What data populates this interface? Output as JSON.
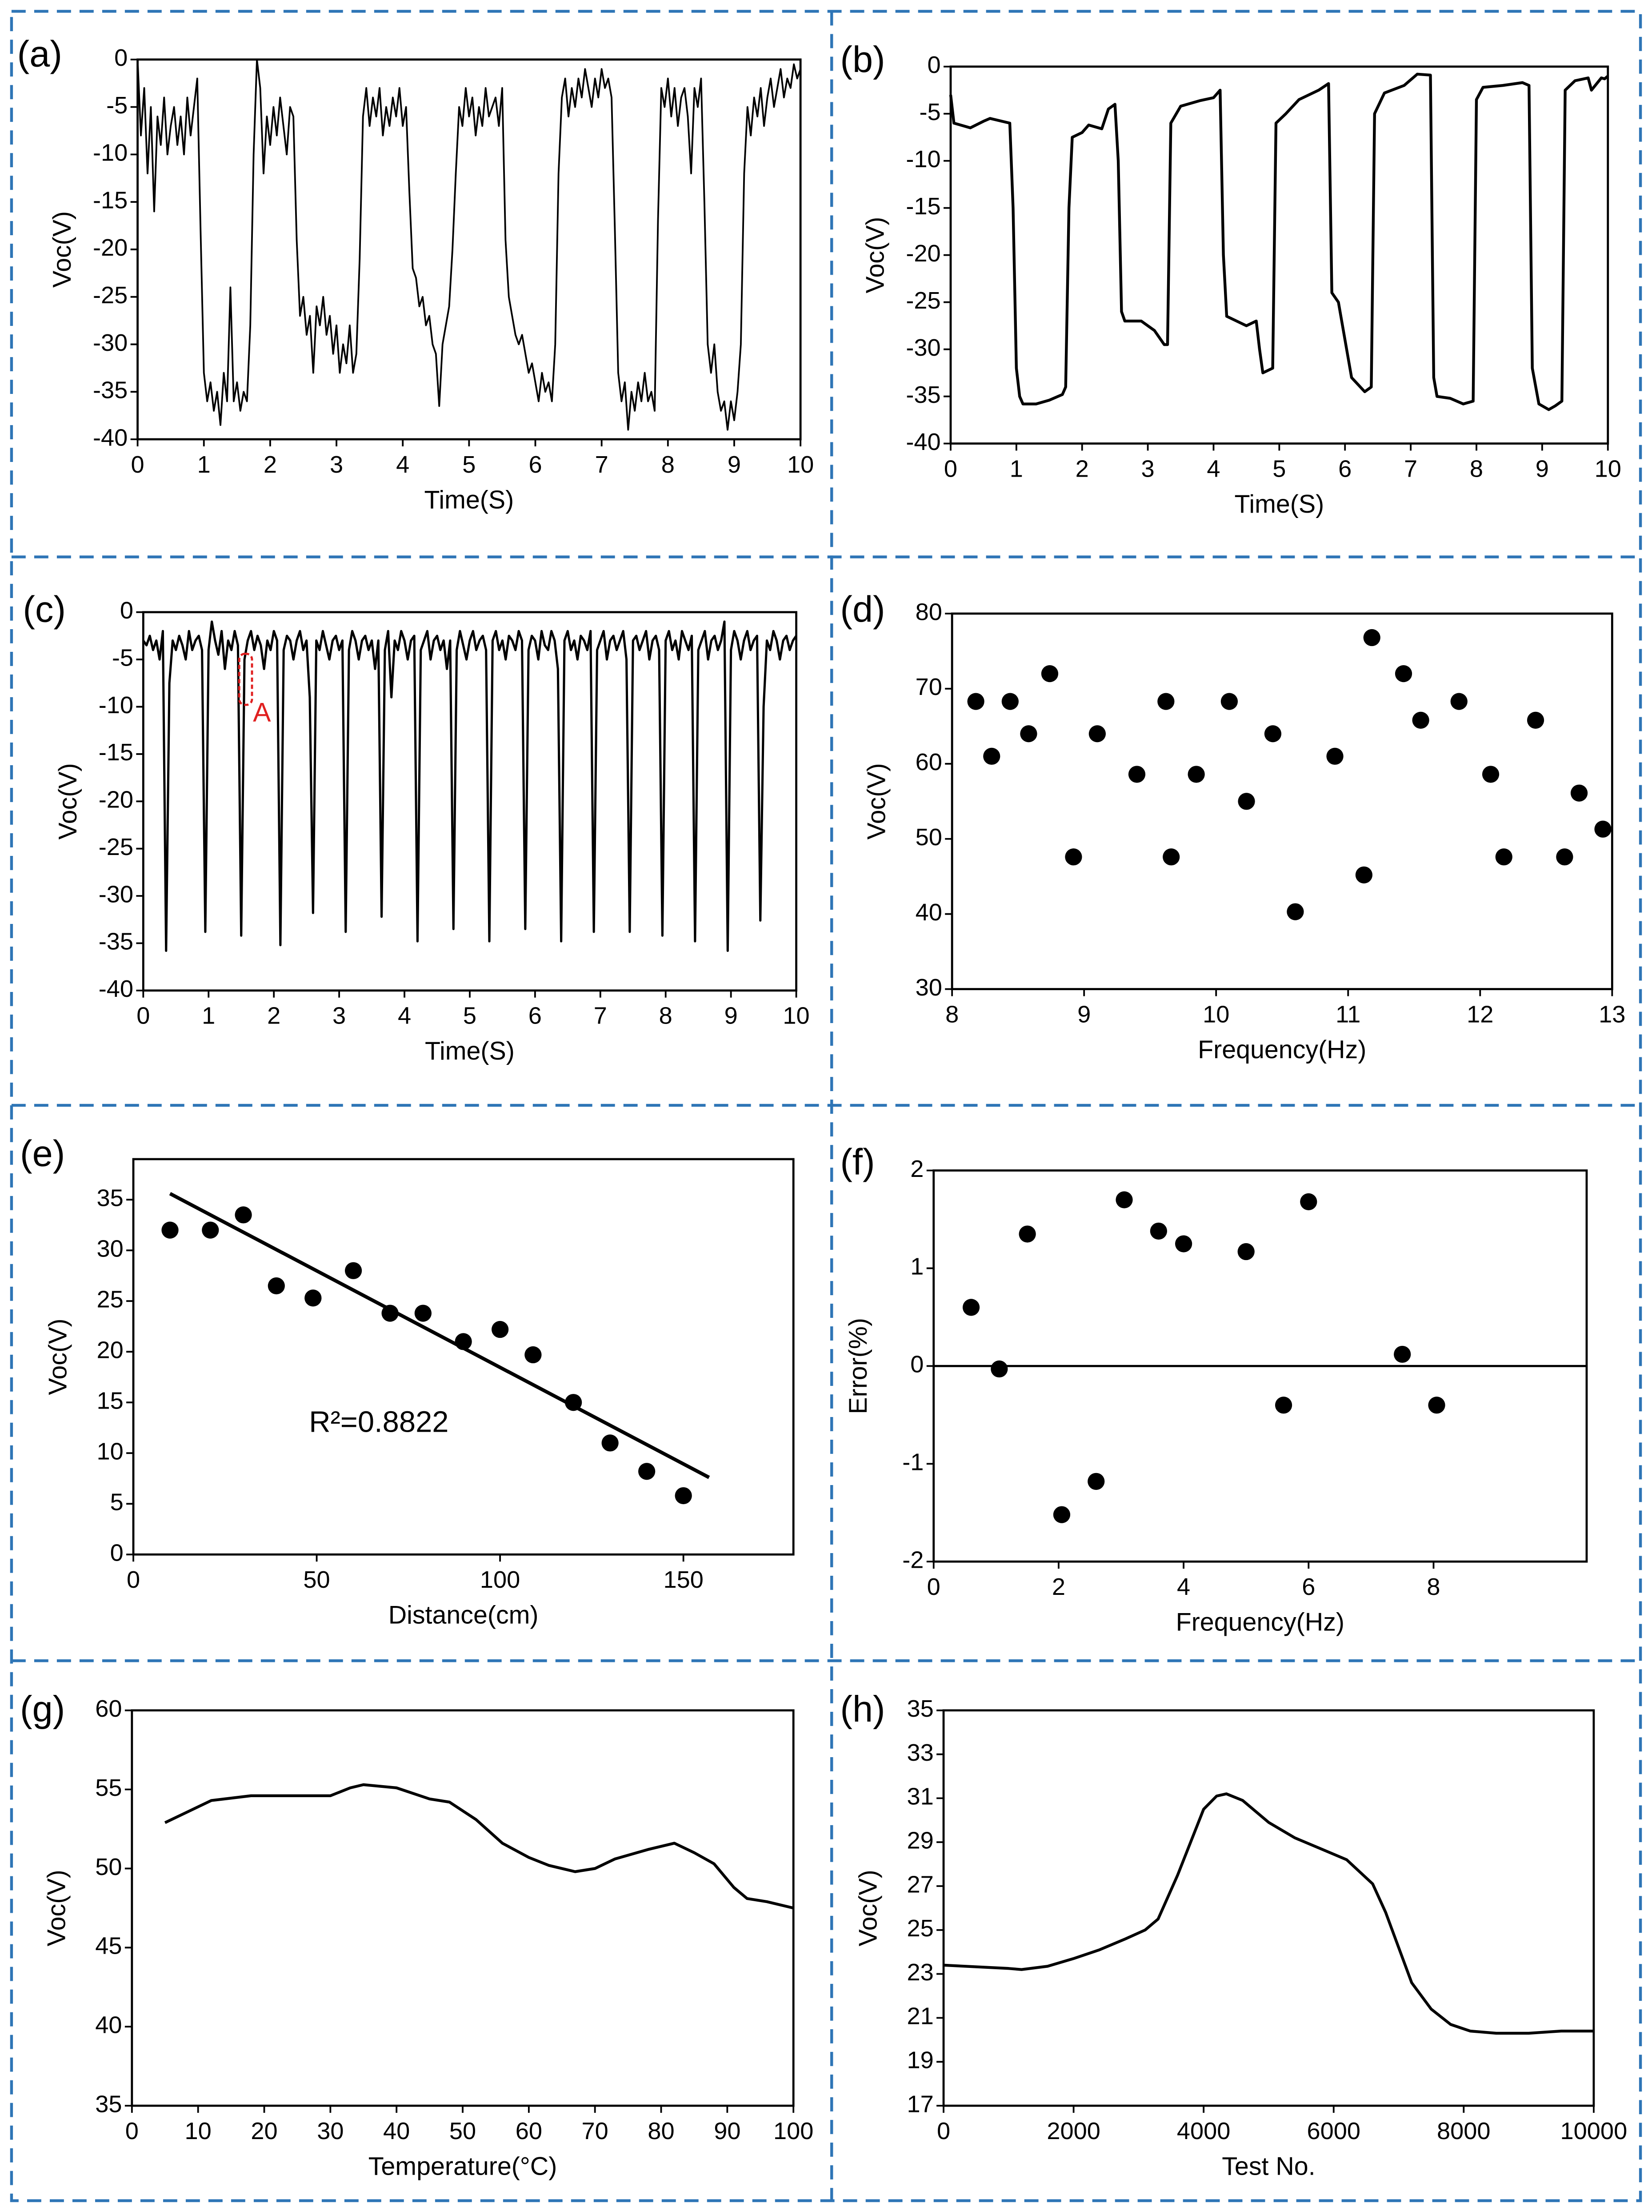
{
  "chart_data": [
    {
      "panel_label": "(a)",
      "type": "line",
      "x_label": "Time(S)",
      "y_label": "Voc(V)",
      "color": "#000000",
      "xlim": [
        0,
        10
      ],
      "ylim": [
        -40,
        0
      ],
      "xticks": [
        0,
        1,
        2,
        3,
        4,
        5,
        6,
        7,
        8,
        9,
        10
      ],
      "yticks": [
        0,
        -5,
        -10,
        -15,
        -20,
        -25,
        -30,
        -35,
        -40
      ],
      "x": [
        0,
        0.05,
        0.1,
        0.15,
        0.2,
        0.25,
        0.3,
        0.35,
        0.4,
        0.45,
        0.5,
        0.55,
        0.6,
        0.65,
        0.7,
        0.75,
        0.8,
        0.85,
        0.9,
        0.95,
        1,
        1.05,
        1.1,
        1.15,
        1.2,
        1.25,
        1.3,
        1.35,
        1.4,
        1.45,
        1.5,
        1.55,
        1.6,
        1.65,
        1.7,
        1.75,
        1.8,
        1.85,
        1.9,
        1.95,
        2,
        2.05,
        2.1,
        2.15,
        2.2,
        2.25,
        2.3,
        2.35,
        2.4,
        2.45,
        2.5,
        2.55,
        2.6,
        2.65,
        2.7,
        2.75,
        2.8,
        2.85,
        2.9,
        2.95,
        3,
        3.05,
        3.1,
        3.15,
        3.2,
        3.25,
        3.3,
        3.35,
        3.4,
        3.45,
        3.5,
        3.55,
        3.6,
        3.65,
        3.7,
        3.75,
        3.8,
        3.85,
        3.9,
        3.95,
        4,
        4.05,
        4.1,
        4.15,
        4.2,
        4.25,
        4.3,
        4.35,
        4.4,
        4.45,
        4.5,
        4.55,
        4.6,
        4.65,
        4.7,
        4.75,
        4.8,
        4.85,
        4.9,
        4.95,
        5,
        5.05,
        5.1,
        5.15,
        5.2,
        5.25,
        5.3,
        5.35,
        5.4,
        5.45,
        5.5,
        5.55,
        5.6,
        5.65,
        5.7,
        5.75,
        5.8,
        5.85,
        5.9,
        5.95,
        6,
        6.05,
        6.1,
        6.15,
        6.2,
        6.25,
        6.3,
        6.35,
        6.4,
        6.45,
        6.5,
        6.55,
        6.6,
        6.65,
        6.7,
        6.75,
        6.8,
        6.85,
        6.9,
        6.95,
        7,
        7.05,
        7.1,
        7.15,
        7.2,
        7.25,
        7.3,
        7.35,
        7.4,
        7.45,
        7.5,
        7.55,
        7.6,
        7.65,
        7.7,
        7.75,
        7.8,
        7.85,
        7.9,
        7.95,
        8,
        8.05,
        8.1,
        8.15,
        8.2,
        8.25,
        8.3,
        8.35,
        8.4,
        8.45,
        8.5,
        8.55,
        8.6,
        8.65,
        8.7,
        8.75,
        8.8,
        8.85,
        8.9,
        8.95,
        9,
        9.05,
        9.1,
        9.15,
        9.2,
        9.25,
        9.3,
        9.35,
        9.4,
        9.45,
        9.5,
        9.55,
        9.6,
        9.65,
        9.7,
        9.75,
        9.8,
        9.85,
        9.9,
        9.95,
        10
      ],
      "values": [
        0,
        -8,
        -3,
        -12,
        -5,
        -16,
        -6,
        -9,
        -4,
        -10,
        -7,
        -5,
        -9,
        -6,
        -10,
        -4,
        -8,
        -5,
        -2,
        -18,
        -33,
        -36,
        -34,
        -37,
        -35,
        -38.5,
        -33,
        -36,
        -24,
        -36,
        -34,
        -37,
        -35,
        -36,
        -28,
        -10,
        0,
        -3,
        -12,
        -6,
        -9,
        -5,
        -8,
        -4,
        -7,
        -10,
        -5,
        -6,
        -19,
        -27,
        -25,
        -29,
        -27,
        -33,
        -26,
        -28,
        -25,
        -29,
        -27,
        -31,
        -28,
        -33,
        -30,
        -32,
        -28,
        -33,
        -31,
        -21,
        -6,
        -3,
        -7,
        -4,
        -6,
        -3,
        -8,
        -5,
        -7,
        -4,
        -6,
        -3,
        -7,
        -5,
        -14,
        -22,
        -23,
        -26,
        -25,
        -28,
        -27,
        -30,
        -31,
        -36.5,
        -30,
        -28,
        -26,
        -20,
        -12,
        -5,
        -7,
        -3,
        -6,
        -4,
        -8,
        -5,
        -7,
        -3,
        -6,
        -5,
        -4,
        -7,
        -3,
        -19,
        -25,
        -27,
        -29,
        -30,
        -29,
        -31,
        -33,
        -32,
        -34,
        -36,
        -33,
        -35,
        -34,
        -36,
        -30,
        -12,
        -4,
        -2,
        -6,
        -3,
        -5,
        -2,
        -4,
        -1,
        -3,
        -5,
        -2,
        -4,
        -1,
        -3,
        -2,
        -4,
        -18,
        -33,
        -36,
        -34,
        -39,
        -35,
        -37,
        -34,
        -36,
        -33,
        -36,
        -35,
        -37,
        -17,
        -3,
        -5,
        -2,
        -6,
        -3,
        -7,
        -4,
        -3,
        -6,
        -12,
        -3,
        -5,
        -2,
        -15,
        -30,
        -33,
        -30,
        -35,
        -37,
        -36,
        -39,
        -36,
        -38,
        -35,
        -30,
        -12,
        -5,
        -8,
        -4,
        -6,
        -3,
        -7,
        -4,
        -2,
        -5,
        -3,
        -1,
        -4,
        -2,
        -3,
        -0.5,
        -2,
        -1
      ]
    },
    {
      "panel_label": "(b)",
      "type": "line",
      "x_label": "Time(S)",
      "y_label": "Voc(V)",
      "color": "#000000",
      "xlim": [
        0,
        10
      ],
      "ylim": [
        -40,
        0
      ],
      "xticks": [
        0,
        1,
        2,
        3,
        4,
        5,
        6,
        7,
        8,
        9,
        10
      ],
      "yticks": [
        0,
        -5,
        -10,
        -15,
        -20,
        -25,
        -30,
        -35,
        -40
      ],
      "x": [
        0,
        0.05,
        0.3,
        0.5,
        0.6,
        0.9,
        0.95,
        1,
        1.05,
        1.1,
        1.3,
        1.5,
        1.7,
        1.75,
        1.8,
        1.85,
        2,
        2.1,
        2.3,
        2.4,
        2.5,
        2.55,
        2.6,
        2.65,
        2.9,
        3.1,
        3.25,
        3.3,
        3.35,
        3.5,
        3.8,
        4,
        4.1,
        4.15,
        4.2,
        4.5,
        4.65,
        4.7,
        4.75,
        4.9,
        4.95,
        5.1,
        5.3,
        5.6,
        5.75,
        5.8,
        5.9,
        6,
        6.1,
        6.3,
        6.4,
        6.45,
        6.6,
        6.9,
        7.1,
        7.3,
        7.35,
        7.4,
        7.6,
        7.8,
        7.95,
        8,
        8.1,
        8.4,
        8.7,
        8.8,
        8.85,
        8.95,
        9.1,
        9.2,
        9.3,
        9.35,
        9.5,
        9.7,
        9.75,
        9.9,
        9.95,
        10
      ],
      "values": [
        -3,
        -6,
        -6.5,
        -5.8,
        -5.5,
        -6,
        -15,
        -32,
        -35,
        -35.8,
        -35.8,
        -35.4,
        -34.8,
        -34,
        -15,
        -7.5,
        -7,
        -6.2,
        -6.6,
        -4.5,
        -4,
        -10,
        -26,
        -27,
        -27,
        -28,
        -29.5,
        -29.5,
        -6,
        -4.2,
        -3.6,
        -3.3,
        -2.5,
        -20,
        -26.5,
        -27.5,
        -27,
        -30,
        -32.5,
        -32,
        -6,
        -5,
        -3.5,
        -2.5,
        -1.8,
        -24,
        -25,
        -29,
        -33,
        -34.5,
        -34,
        -5,
        -2.8,
        -2,
        -0.8,
        -0.9,
        -33,
        -35,
        -35.2,
        -35.8,
        -35.5,
        -3.5,
        -2.2,
        -2,
        -1.7,
        -2,
        -32,
        -35.8,
        -36.4,
        -36,
        -35.5,
        -2.5,
        -1.5,
        -1.2,
        -2.5,
        -1.2,
        -1.3,
        -1
      ]
    },
    {
      "panel_label": "(c)",
      "type": "line",
      "x_label": "Time(S)",
      "y_label": "Voc(V)",
      "color": "#000000",
      "annotation": "A",
      "xlim": [
        0,
        10
      ],
      "ylim": [
        -40,
        0
      ],
      "xticks": [
        0,
        1,
        2,
        3,
        4,
        5,
        6,
        7,
        8,
        9,
        10
      ],
      "yticks": [
        0,
        -5,
        -10,
        -15,
        -20,
        -25,
        -30,
        -35,
        -40
      ],
      "x": [
        0,
        0.05,
        0.1,
        0.15,
        0.2,
        0.25,
        0.3,
        0.35,
        0.4,
        0.45,
        0.5,
        0.55,
        0.6,
        0.65,
        0.7,
        0.75,
        0.8,
        0.85,
        0.9,
        0.95,
        1,
        1.05,
        1.1,
        1.15,
        1.2,
        1.25,
        1.3,
        1.35,
        1.4,
        1.45,
        1.5,
        1.55,
        1.6,
        1.65,
        1.7,
        1.75,
        1.8,
        1.85,
        1.9,
        1.95,
        2,
        2.05,
        2.1,
        2.15,
        2.2,
        2.25,
        2.3,
        2.35,
        2.4,
        2.45,
        2.5,
        2.55,
        2.6,
        2.65,
        2.7,
        2.75,
        2.8,
        2.85,
        2.9,
        2.95,
        3,
        3.05,
        3.1,
        3.15,
        3.2,
        3.25,
        3.3,
        3.35,
        3.4,
        3.45,
        3.5,
        3.55,
        3.6,
        3.65,
        3.7,
        3.75,
        3.8,
        3.85,
        3.9,
        3.95,
        4,
        4.05,
        4.1,
        4.15,
        4.2,
        4.25,
        4.3,
        4.35,
        4.4,
        4.45,
        4.5,
        4.55,
        4.6,
        4.65,
        4.7,
        4.75,
        4.8,
        4.85,
        4.9,
        4.95,
        5,
        5.05,
        5.1,
        5.15,
        5.2,
        5.25,
        5.3,
        5.35,
        5.4,
        5.45,
        5.5,
        5.55,
        5.6,
        5.65,
        5.7,
        5.75,
        5.8,
        5.85,
        5.9,
        5.95,
        6,
        6.05,
        6.1,
        6.15,
        6.2,
        6.25,
        6.3,
        6.35,
        6.4,
        6.45,
        6.5,
        6.55,
        6.6,
        6.65,
        6.7,
        6.75,
        6.8,
        6.85,
        6.9,
        6.95,
        7,
        7.05,
        7.1,
        7.15,
        7.2,
        7.25,
        7.3,
        7.35,
        7.4,
        7.45,
        7.5,
        7.55,
        7.6,
        7.65,
        7.7,
        7.75,
        7.8,
        7.85,
        7.9,
        7.95,
        8,
        8.05,
        8.1,
        8.15,
        8.2,
        8.25,
        8.3,
        8.35,
        8.4,
        8.45,
        8.5,
        8.55,
        8.6,
        8.65,
        8.7,
        8.75,
        8.8,
        8.85,
        8.9,
        8.95,
        9,
        9.05,
        9.1,
        9.15,
        9.2,
        9.25,
        9.3,
        9.35,
        9.4,
        9.45,
        9.5,
        9.55,
        9.6,
        9.65,
        9.7,
        9.75,
        9.8,
        9.85,
        9.9,
        9.95,
        10
      ],
      "values": [
        -3,
        -3.5,
        -2.5,
        -4,
        -3,
        -5,
        -2,
        -35.8,
        -7.5,
        -3,
        -4,
        -2.5,
        -3.5,
        -5,
        -2,
        -4,
        -3,
        -2.5,
        -4,
        -33.8,
        -4,
        -1,
        -3,
        -4.5,
        -2,
        -6,
        -3,
        -4,
        -2,
        -3.5,
        -34.2,
        -5,
        -3,
        -2,
        -4,
        -2.5,
        -3.5,
        -6,
        -3,
        -4,
        -2,
        -3,
        -35.2,
        -4,
        -2.5,
        -3,
        -5,
        -3,
        -2,
        -4,
        -3,
        -9,
        -31.8,
        -3,
        -4,
        -2,
        -3.5,
        -5,
        -3,
        -2.5,
        -4,
        -3,
        -33.8,
        -4,
        -2,
        -3,
        -5,
        -3,
        -2.5,
        -4,
        -3,
        -6,
        -3,
        -32.2,
        -4,
        -2,
        -9,
        -3,
        -4,
        -2,
        -3,
        -5,
        -3,
        -2.5,
        -34.8,
        -4,
        -3,
        -2,
        -5,
        -3,
        -2.5,
        -4,
        -3,
        -6,
        -3,
        -33.5,
        -4,
        -2,
        -3.5,
        -5,
        -3,
        -2,
        -4,
        -3,
        -2.5,
        -4,
        -34.8,
        -3,
        -2,
        -4,
        -3,
        -5,
        -2.5,
        -3,
        -4,
        -2,
        -3,
        -33.5,
        -4,
        -2.5,
        -3,
        -5,
        -2,
        -3.5,
        -4,
        -2,
        -3,
        -6,
        -34.8,
        -3,
        -2,
        -4,
        -3,
        -5,
        -2.5,
        -3,
        -4,
        -2,
        -33.8,
        -4,
        -3,
        -2,
        -5,
        -3,
        -2.5,
        -4,
        -3,
        -2,
        -5,
        -33.8,
        -3,
        -2.5,
        -4,
        -3,
        -2,
        -5,
        -3,
        -2.5,
        -4,
        -34.2,
        -3,
        -2,
        -4,
        -3,
        -5,
        -2,
        -3,
        -4,
        -2.5,
        -34.8,
        -4,
        -3,
        -2,
        -5,
        -3,
        -2.5,
        -4,
        -3,
        -1,
        -35.8,
        -4,
        -2,
        -3,
        -5,
        -3,
        -2,
        -4,
        -3,
        -2.5,
        -32.6,
        -10,
        -3,
        -4,
        -2,
        -3,
        -5,
        -3,
        -2.5,
        -4,
        -3,
        -2.5
      ]
    },
    {
      "panel_label": "(d)",
      "type": "scatter",
      "x_label": "Frequency(Hz)",
      "y_label": "Voc(V)",
      "color": "#000000",
      "xlim": [
        8,
        13
      ],
      "ylim": [
        30,
        80
      ],
      "xticks": [
        8,
        9,
        10,
        11,
        12,
        13
      ],
      "yticks": [
        30,
        40,
        50,
        60,
        70,
        80
      ],
      "x": [
        8.18,
        8.3,
        8.44,
        8.58,
        8.74,
        8.92,
        9.1,
        9.4,
        9.62,
        9.66,
        9.85,
        10.1,
        10.23,
        10.43,
        10.6,
        10.9,
        11.12,
        11.18,
        11.42,
        11.55,
        11.84,
        12.08,
        12.18,
        12.42,
        12.64,
        12.75,
        12.93
      ],
      "values": [
        68.3,
        61,
        68.3,
        64,
        72,
        47.6,
        64,
        58.6,
        68.3,
        47.6,
        58.6,
        68.3,
        55,
        64,
        40.3,
        61,
        45.2,
        76.8,
        72,
        65.8,
        68.3,
        58.6,
        47.6,
        65.8,
        47.6,
        56.1,
        51.3
      ]
    },
    {
      "panel_label": "(e)",
      "type": "scatter",
      "x_label": "Distance(cm)",
      "y_label": "Voc(V)",
      "color": "#000000",
      "annotation": "R²=0.8822",
      "xlim": [
        0,
        180
      ],
      "ylim": [
        0,
        39
      ],
      "xticks": [
        0,
        50,
        100,
        150
      ],
      "yticks": [
        0,
        5,
        10,
        15,
        20,
        25,
        30,
        35
      ],
      "x": [
        10,
        21,
        30,
        39,
        49,
        60,
        70,
        79,
        90,
        100,
        109,
        120,
        130,
        140,
        150
      ],
      "values": [
        32,
        32,
        33.5,
        26.5,
        25.3,
        28,
        23.8,
        23.8,
        21,
        22.2,
        19.7,
        15,
        11,
        8.2,
        5.8
      ],
      "fit": {
        "x": [
          10,
          157
        ],
        "values": [
          35.6,
          7.6
        ]
      }
    },
    {
      "panel_label": "(f)",
      "type": "scatter",
      "x_label": "Frequency(Hz)",
      "y_label": "Error(%)",
      "color": "#000000",
      "reference_line": 0,
      "xlim": [
        0,
        10.45
      ],
      "ylim": [
        -2,
        2
      ],
      "xticks": [
        0,
        2,
        4,
        6,
        8
      ],
      "yticks": [
        -2,
        -1,
        0,
        1,
        2
      ],
      "x": [
        0.6,
        1.05,
        1.5,
        2.05,
        2.6,
        3.05,
        3.6,
        4,
        5,
        5.6,
        6,
        7.5,
        8.05
      ],
      "values": [
        0.6,
        -0.03,
        1.35,
        -1.52,
        -1.18,
        1.7,
        1.38,
        1.25,
        1.17,
        -0.4,
        1.68,
        0.12,
        -0.4
      ]
    },
    {
      "panel_label": "(g)",
      "type": "line",
      "x_label": "Temperature(°C)",
      "y_label": "Voc(V)",
      "color": "#000000",
      "xlim": [
        0,
        100
      ],
      "ylim": [
        35,
        60
      ],
      "xticks": [
        0,
        10,
        20,
        30,
        40,
        50,
        60,
        70,
        80,
        90,
        100
      ],
      "yticks": [
        35,
        40,
        45,
        50,
        55,
        60
      ],
      "x": [
        5,
        8,
        12,
        18,
        25,
        30,
        33,
        35,
        40,
        45,
        48,
        52,
        56,
        60,
        63,
        67,
        70,
        73,
        78,
        82,
        85,
        88,
        91,
        93,
        96,
        100
      ],
      "values": [
        52.9,
        53.5,
        54.3,
        54.6,
        54.6,
        54.6,
        55.1,
        55.3,
        55.1,
        54.4,
        54.2,
        53.1,
        51.6,
        50.7,
        50.2,
        49.8,
        50,
        50.6,
        51.2,
        51.6,
        51,
        50.3,
        48.8,
        48.1,
        47.9,
        47.5
      ]
    },
    {
      "panel_label": "(h)",
      "type": "line",
      "x_label": "Test No.",
      "y_label": "Voc(V)",
      "color": "#000000",
      "xlim": [
        0,
        10000
      ],
      "ylim": [
        17,
        35
      ],
      "xticks": [
        0,
        2000,
        4000,
        6000,
        8000,
        10000
      ],
      "yticks": [
        17,
        19,
        21,
        23,
        25,
        27,
        29,
        31,
        33,
        35
      ],
      "x": [
        0,
        1000,
        1200,
        1600,
        2000,
        2400,
        2800,
        3100,
        3300,
        3600,
        3800,
        4000,
        4200,
        4350,
        4600,
        5000,
        5400,
        5800,
        6200,
        6600,
        6800,
        7000,
        7200,
        7500,
        7800,
        8100,
        8500,
        9000,
        9500,
        10000
      ],
      "values": [
        23.4,
        23.25,
        23.2,
        23.35,
        23.7,
        24.1,
        24.6,
        25,
        25.5,
        27.5,
        29,
        30.5,
        31.1,
        31.2,
        30.9,
        29.9,
        29.2,
        28.7,
        28.2,
        27.1,
        25.8,
        24.2,
        22.6,
        21.4,
        20.7,
        20.4,
        20.3,
        20.3,
        20.4,
        20.4
      ]
    }
  ]
}
